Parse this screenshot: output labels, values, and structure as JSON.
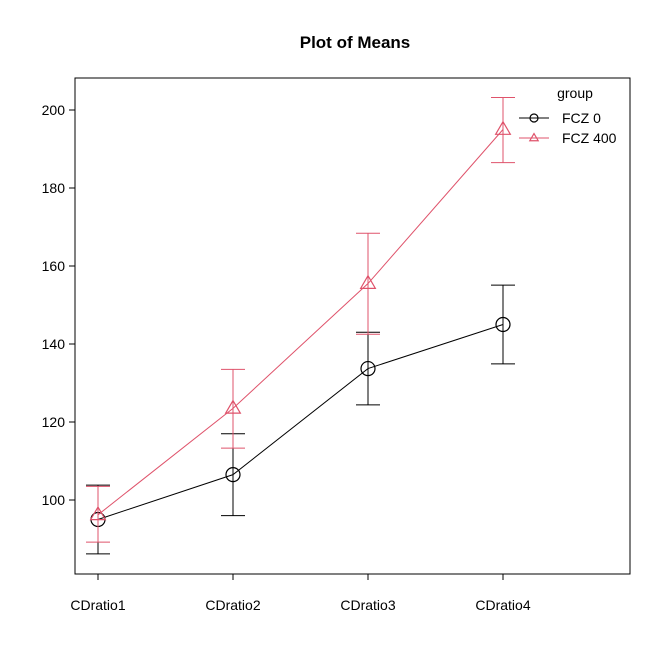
{
  "chart_data": {
    "type": "line",
    "title": "Plot of Means",
    "xlabel": "",
    "ylabel": "",
    "categories": [
      "CDratio1",
      "CDratio2",
      "CDratio3",
      "CDratio4"
    ],
    "ylim": [
      80,
      207
    ],
    "yticks": [
      100,
      120,
      140,
      160,
      180,
      200
    ],
    "legend": {
      "title": "group",
      "position": "top-right"
    },
    "grid": false,
    "series": [
      {
        "name": "FCZ 0",
        "color": "#000000",
        "marker": "circle",
        "values": [
          95.0,
          106.5,
          133.7,
          145.0
        ],
        "error_upper": [
          103.8,
          117.0,
          143.0,
          155.1
        ],
        "error_lower": [
          86.2,
          96.0,
          124.4,
          134.9
        ]
      },
      {
        "name": "FCZ 400",
        "color": "#DF536B",
        "marker": "triangle",
        "values": [
          96.2,
          123.5,
          155.5,
          195.0
        ],
        "error_upper": [
          103.5,
          133.5,
          168.4,
          203.2
        ],
        "error_lower": [
          89.2,
          113.3,
          142.5,
          186.5
        ]
      }
    ]
  }
}
